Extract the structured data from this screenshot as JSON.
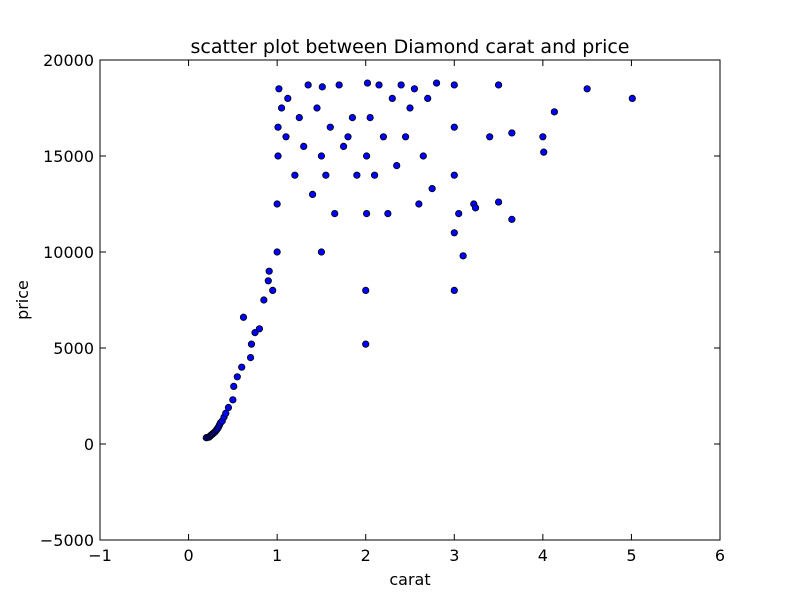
{
  "chart_data": {
    "type": "scatter",
    "title": "scatter plot between Diamond carat and price",
    "xlabel": "carat",
    "ylabel": "price",
    "xlim": [
      -1,
      6
    ],
    "ylim": [
      -5000,
      20000
    ],
    "xticks": [
      -1,
      0,
      1,
      2,
      3,
      4,
      5,
      6
    ],
    "yticks": [
      -5000,
      0,
      5000,
      10000,
      15000,
      20000
    ],
    "xtick_labels": [
      "−1",
      "0",
      "1",
      "2",
      "3",
      "4",
      "5",
      "6"
    ],
    "ytick_labels": [
      "−5000",
      "0",
      "5000",
      "10000",
      "15000",
      "20000"
    ],
    "grid": false,
    "legend": false,
    "marker_color": "#0000ff",
    "marker_edge_color": "#000000",
    "series": [
      {
        "points": [
          [
            0.2,
            326
          ],
          [
            0.21,
            340
          ],
          [
            0.23,
            357
          ],
          [
            0.24,
            400
          ],
          [
            0.25,
            450
          ],
          [
            0.26,
            480
          ],
          [
            0.27,
            520
          ],
          [
            0.28,
            560
          ],
          [
            0.29,
            600
          ],
          [
            0.3,
            640
          ],
          [
            0.31,
            700
          ],
          [
            0.32,
            760
          ],
          [
            0.33,
            820
          ],
          [
            0.34,
            900
          ],
          [
            0.35,
            1000
          ],
          [
            0.36,
            1100
          ],
          [
            0.38,
            1200
          ],
          [
            0.4,
            1400
          ],
          [
            0.42,
            1600
          ],
          [
            0.45,
            1900
          ],
          [
            0.5,
            2300
          ],
          [
            0.51,
            3000
          ],
          [
            0.55,
            3500
          ],
          [
            0.6,
            4000
          ],
          [
            0.62,
            6600
          ],
          [
            0.7,
            4500
          ],
          [
            0.71,
            5200
          ],
          [
            0.75,
            5800
          ],
          [
            0.8,
            6000
          ],
          [
            0.85,
            7500
          ],
          [
            0.9,
            8500
          ],
          [
            0.91,
            9000
          ],
          [
            0.95,
            8000
          ],
          [
            1.0,
            10000
          ],
          [
            1.0,
            12500
          ],
          [
            1.01,
            15000
          ],
          [
            1.01,
            16500
          ],
          [
            1.02,
            18500
          ],
          [
            1.05,
            17500
          ],
          [
            1.1,
            16000
          ],
          [
            1.12,
            18000
          ],
          [
            1.2,
            14000
          ],
          [
            1.25,
            17000
          ],
          [
            1.3,
            15500
          ],
          [
            1.35,
            18700
          ],
          [
            1.4,
            13000
          ],
          [
            1.45,
            17500
          ],
          [
            1.5,
            10000
          ],
          [
            1.5,
            15000
          ],
          [
            1.51,
            18600
          ],
          [
            1.55,
            14000
          ],
          [
            1.6,
            16500
          ],
          [
            1.65,
            12000
          ],
          [
            1.7,
            18700
          ],
          [
            1.75,
            15500
          ],
          [
            1.8,
            16000
          ],
          [
            1.85,
            17000
          ],
          [
            1.9,
            14000
          ],
          [
            2.0,
            5200
          ],
          [
            2.0,
            8000
          ],
          [
            2.01,
            12000
          ],
          [
            2.01,
            15000
          ],
          [
            2.02,
            18800
          ],
          [
            2.05,
            17000
          ],
          [
            2.1,
            14000
          ],
          [
            2.15,
            18700
          ],
          [
            2.2,
            16000
          ],
          [
            2.25,
            12000
          ],
          [
            2.3,
            18000
          ],
          [
            2.35,
            14500
          ],
          [
            2.4,
            18700
          ],
          [
            2.45,
            16000
          ],
          [
            2.5,
            17500
          ],
          [
            2.55,
            18500
          ],
          [
            2.6,
            12500
          ],
          [
            2.65,
            15000
          ],
          [
            2.7,
            18000
          ],
          [
            2.75,
            13300
          ],
          [
            2.8,
            18800
          ],
          [
            3.0,
            18700
          ],
          [
            3.0,
            16500
          ],
          [
            3.0,
            14000
          ],
          [
            3.0,
            11000
          ],
          [
            3.0,
            8000
          ],
          [
            3.05,
            12000
          ],
          [
            3.1,
            9800
          ],
          [
            3.22,
            12500
          ],
          [
            3.24,
            12300
          ],
          [
            3.4,
            16000
          ],
          [
            3.5,
            18700
          ],
          [
            3.5,
            12600
          ],
          [
            3.65,
            16200
          ],
          [
            3.65,
            11700
          ],
          [
            4.0,
            16000
          ],
          [
            4.01,
            15200
          ],
          [
            4.13,
            17300
          ],
          [
            4.5,
            18500
          ],
          [
            5.01,
            18000
          ]
        ]
      }
    ]
  }
}
